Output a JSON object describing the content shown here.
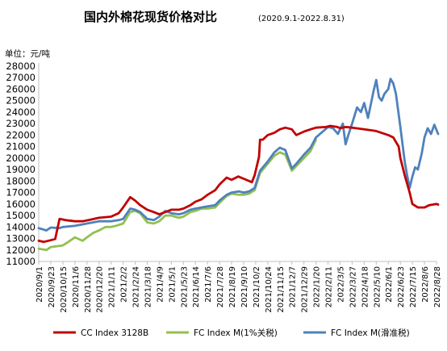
{
  "chart_data": {
    "type": "line",
    "title": "国内外棉花现货价格对比",
    "subtitle": "(2020.9.1-2022.8.31)",
    "unit_label": "单位：元/吨",
    "ylim": [
      11000,
      28000
    ],
    "y_ticks": [
      11000,
      12000,
      13000,
      14000,
      15000,
      16000,
      17000,
      18000,
      19000,
      20000,
      21000,
      22000,
      23000,
      24000,
      25000,
      26000,
      27000,
      28000
    ],
    "x_tick_labels": [
      "2020/9/1",
      "2020/9/23",
      "2020/10/15",
      "2020/11/6",
      "2020/11/28",
      "2020/12/20",
      "2021/1/11",
      "2021/2/2",
      "2021/2/24",
      "2021/3/18",
      "2021/4/9",
      "2021/5/1",
      "2021/5/23",
      "2021/6/14",
      "2021/7/6",
      "2021/7/28",
      "2021/8/19",
      "2021/9/10",
      "2021/10/2",
      "2021/10/24",
      "2021/11/15",
      "2021/12/7",
      "2021/12/29",
      "2022/1/20",
      "2022/2/11",
      "2022/3/5",
      "2022/3/27",
      "2022/4/18",
      "2022/5/10",
      "2022/6/1",
      "2022/6/23",
      "2022/7/15",
      "2022/8/6",
      "2022/8/28"
    ],
    "legend_position": "bottom",
    "grid": false,
    "series": [
      {
        "name": "CC Index 3128B",
        "color": "#c00000",
        "points": [
          [
            "2020/9/1",
            12800
          ],
          [
            "2020/9/10",
            12700
          ],
          [
            "2020/9/23",
            12850
          ],
          [
            "2020/10/1",
            12950
          ],
          [
            "2020/10/9",
            14700
          ],
          [
            "2020/10/20",
            14600
          ],
          [
            "2020/11/6",
            14500
          ],
          [
            "2020/11/20",
            14500
          ],
          [
            "2020/12/1",
            14600
          ],
          [
            "2020/12/20",
            14800
          ],
          [
            "2021/1/11",
            14900
          ],
          [
            "2021/1/25",
            15200
          ],
          [
            "2021/2/2",
            15700
          ],
          [
            "2021/2/15",
            16600
          ],
          [
            "2021/2/24",
            16300
          ],
          [
            "2021/3/5",
            15900
          ],
          [
            "2021/3/18",
            15500
          ],
          [
            "2021/3/30",
            15300
          ],
          [
            "2021/4/9",
            15100
          ],
          [
            "2021/4/20",
            15300
          ],
          [
            "2021/5/1",
            15500
          ],
          [
            "2021/5/15",
            15500
          ],
          [
            "2021/5/23",
            15600
          ],
          [
            "2021/6/5",
            15900
          ],
          [
            "2021/6/14",
            16200
          ],
          [
            "2021/6/25",
            16400
          ],
          [
            "2021/7/6",
            16800
          ],
          [
            "2021/7/20",
            17200
          ],
          [
            "2021/7/28",
            17700
          ],
          [
            "2021/8/10",
            18300
          ],
          [
            "2021/8/19",
            18100
          ],
          [
            "2021/8/31",
            18400
          ],
          [
            "2021/9/10",
            18200
          ],
          [
            "2021/9/25",
            17900
          ],
          [
            "2021/9/30",
            18500
          ],
          [
            "2021/10/8",
            20100
          ],
          [
            "2021/10/10",
            21600
          ],
          [
            "2021/10/15",
            21600
          ],
          [
            "2021/10/24",
            22000
          ],
          [
            "2021/11/5",
            22200
          ],
          [
            "2021/11/15",
            22500
          ],
          [
            "2021/11/25",
            22650
          ],
          [
            "2021/12/7",
            22500
          ],
          [
            "2021/12/15",
            22000
          ],
          [
            "2021/12/29",
            22300
          ],
          [
            "2022/1/10",
            22500
          ],
          [
            "2022/1/20",
            22650
          ],
          [
            "2022/2/7",
            22700
          ],
          [
            "2022/2/15",
            22800
          ],
          [
            "2022/2/28",
            22700
          ],
          [
            "2022/3/5",
            22600
          ],
          [
            "2022/3/15",
            22700
          ],
          [
            "2022/3/27",
            22650
          ],
          [
            "2022/4/18",
            22500
          ],
          [
            "2022/5/10",
            22350
          ],
          [
            "2022/6/1",
            22000
          ],
          [
            "2022/6/10",
            21800
          ],
          [
            "2022/6/20",
            21000
          ],
          [
            "2022/6/23",
            20000
          ],
          [
            "2022/7/1",
            18500
          ],
          [
            "2022/7/10",
            17000
          ],
          [
            "2022/7/15",
            16000
          ],
          [
            "2022/7/25",
            15700
          ],
          [
            "2022/8/6",
            15700
          ],
          [
            "2022/8/15",
            15900
          ],
          [
            "2022/8/28",
            16000
          ],
          [
            "2022/8/31",
            15950
          ]
        ]
      },
      {
        "name": "FC Index M(1%关税)",
        "color": "#92c050",
        "points": [
          [
            "2020/9/1",
            12100
          ],
          [
            "2020/9/15",
            12000
          ],
          [
            "2020/9/23",
            12250
          ],
          [
            "2020/10/15",
            12400
          ],
          [
            "2020/10/25",
            12700
          ],
          [
            "2020/11/6",
            13100
          ],
          [
            "2020/11/20",
            12800
          ],
          [
            "2020/11/28",
            13100
          ],
          [
            "2020/12/10",
            13500
          ],
          [
            "2020/12/20",
            13700
          ],
          [
            "2021/1/1",
            14000
          ],
          [
            "2021/1/11",
            14000
          ],
          [
            "2021/1/20",
            14100
          ],
          [
            "2021/2/2",
            14300
          ],
          [
            "2021/2/15",
            15300
          ],
          [
            "2021/2/24",
            15400
          ],
          [
            "2021/3/5",
            15200
          ],
          [
            "2021/3/18",
            14400
          ],
          [
            "2021/3/30",
            14300
          ],
          [
            "2021/4/9",
            14500
          ],
          [
            "2021/4/20",
            15000
          ],
          [
            "2021/5/1",
            15000
          ],
          [
            "2021/5/15",
            14800
          ],
          [
            "2021/5/23",
            14900
          ],
          [
            "2021/6/5",
            15300
          ],
          [
            "2021/6/14",
            15400
          ],
          [
            "2021/6/25",
            15600
          ],
          [
            "2021/7/6",
            15600
          ],
          [
            "2021/7/20",
            15700
          ],
          [
            "2021/7/28",
            16100
          ],
          [
            "2021/8/10",
            16700
          ],
          [
            "2021/8/19",
            16900
          ],
          [
            "2021/9/1",
            16800
          ],
          [
            "2021/9/10",
            16800
          ],
          [
            "2021/9/20",
            16900
          ],
          [
            "2021/9/30",
            17200
          ],
          [
            "2021/10/10",
            18700
          ],
          [
            "2021/10/24",
            19500
          ],
          [
            "2021/11/5",
            20200
          ],
          [
            "2021/11/15",
            20500
          ],
          [
            "2021/11/25",
            20300
          ],
          [
            "2021/12/7",
            18900
          ],
          [
            "2021/12/15",
            19300
          ],
          [
            "2021/12/29",
            20000
          ],
          [
            "2022/1/10",
            20600
          ],
          [
            "2022/1/20",
            21600
          ]
        ]
      },
      {
        "name": "FC Index M(滑准税)",
        "color": "#4f81bd",
        "points": [
          [
            "2020/9/1",
            13900
          ],
          [
            "2020/9/15",
            13700
          ],
          [
            "2020/9/23",
            13950
          ],
          [
            "2020/10/9",
            13900
          ],
          [
            "2020/10/15",
            14000
          ],
          [
            "2020/11/6",
            14100
          ],
          [
            "2020/11/28",
            14300
          ],
          [
            "2020/12/20",
            14500
          ],
          [
            "2021/1/11",
            14500
          ],
          [
            "2021/1/25",
            14600
          ],
          [
            "2021/2/2",
            14700
          ],
          [
            "2021/2/15",
            15600
          ],
          [
            "2021/2/24",
            15500
          ],
          [
            "2021/3/5",
            15300
          ],
          [
            "2021/3/18",
            14700
          ],
          [
            "2021/3/30",
            14600
          ],
          [
            "2021/4/9",
            14900
          ],
          [
            "2021/4/20",
            15400
          ],
          [
            "2021/5/1",
            15200
          ],
          [
            "2021/5/15",
            15100
          ],
          [
            "2021/5/23",
            15200
          ],
          [
            "2021/6/5",
            15500
          ],
          [
            "2021/6/14",
            15600
          ],
          [
            "2021/6/25",
            15700
          ],
          [
            "2021/7/6",
            15800
          ],
          [
            "2021/7/20",
            15900
          ],
          [
            "2021/7/28",
            16300
          ],
          [
            "2021/8/10",
            16800
          ],
          [
            "2021/8/19",
            17000
          ],
          [
            "2021/9/1",
            17100
          ],
          [
            "2021/9/10",
            17000
          ],
          [
            "2021/9/20",
            17100
          ],
          [
            "2021/9/30",
            17400
          ],
          [
            "2021/10/10",
            18900
          ],
          [
            "2021/10/24",
            19700
          ],
          [
            "2021/11/5",
            20500
          ],
          [
            "2021/11/15",
            20900
          ],
          [
            "2021/11/25",
            20700
          ],
          [
            "2021/12/7",
            19100
          ],
          [
            "2021/12/15",
            19500
          ],
          [
            "2021/12/29",
            20300
          ],
          [
            "2022/1/10",
            20900
          ],
          [
            "2022/1/20",
            21800
          ],
          [
            "2022/2/11",
            22700
          ],
          [
            "2022/2/20",
            22600
          ],
          [
            "2022/3/1",
            22100
          ],
          [
            "2022/3/10",
            23000
          ],
          [
            "2022/3/15",
            21200
          ],
          [
            "2022/3/20",
            22000
          ],
          [
            "2022/3/27",
            23000
          ],
          [
            "2022/4/5",
            24400
          ],
          [
            "2022/4/12",
            24000
          ],
          [
            "2022/4/18",
            24800
          ],
          [
            "2022/4/25",
            23500
          ],
          [
            "2022/5/5",
            25800
          ],
          [
            "2022/5/10",
            26800
          ],
          [
            "2022/5/15",
            25300
          ],
          [
            "2022/5/20",
            25000
          ],
          [
            "2022/5/25",
            25600
          ],
          [
            "2022/6/1",
            26000
          ],
          [
            "2022/6/5",
            26900
          ],
          [
            "2022/6/10",
            26500
          ],
          [
            "2022/6/15",
            25600
          ],
          [
            "2022/6/23",
            22700
          ],
          [
            "2022/7/1",
            19700
          ],
          [
            "2022/7/5",
            18600
          ],
          [
            "2022/7/10",
            17400
          ],
          [
            "2022/7/15",
            18400
          ],
          [
            "2022/7/20",
            19200
          ],
          [
            "2022/7/25",
            19000
          ],
          [
            "2022/8/1",
            20400
          ],
          [
            "2022/8/6",
            21800
          ],
          [
            "2022/8/12",
            22600
          ],
          [
            "2022/8/18",
            22100
          ],
          [
            "2022/8/24",
            22900
          ],
          [
            "2022/8/31",
            22100
          ]
        ]
      }
    ]
  }
}
